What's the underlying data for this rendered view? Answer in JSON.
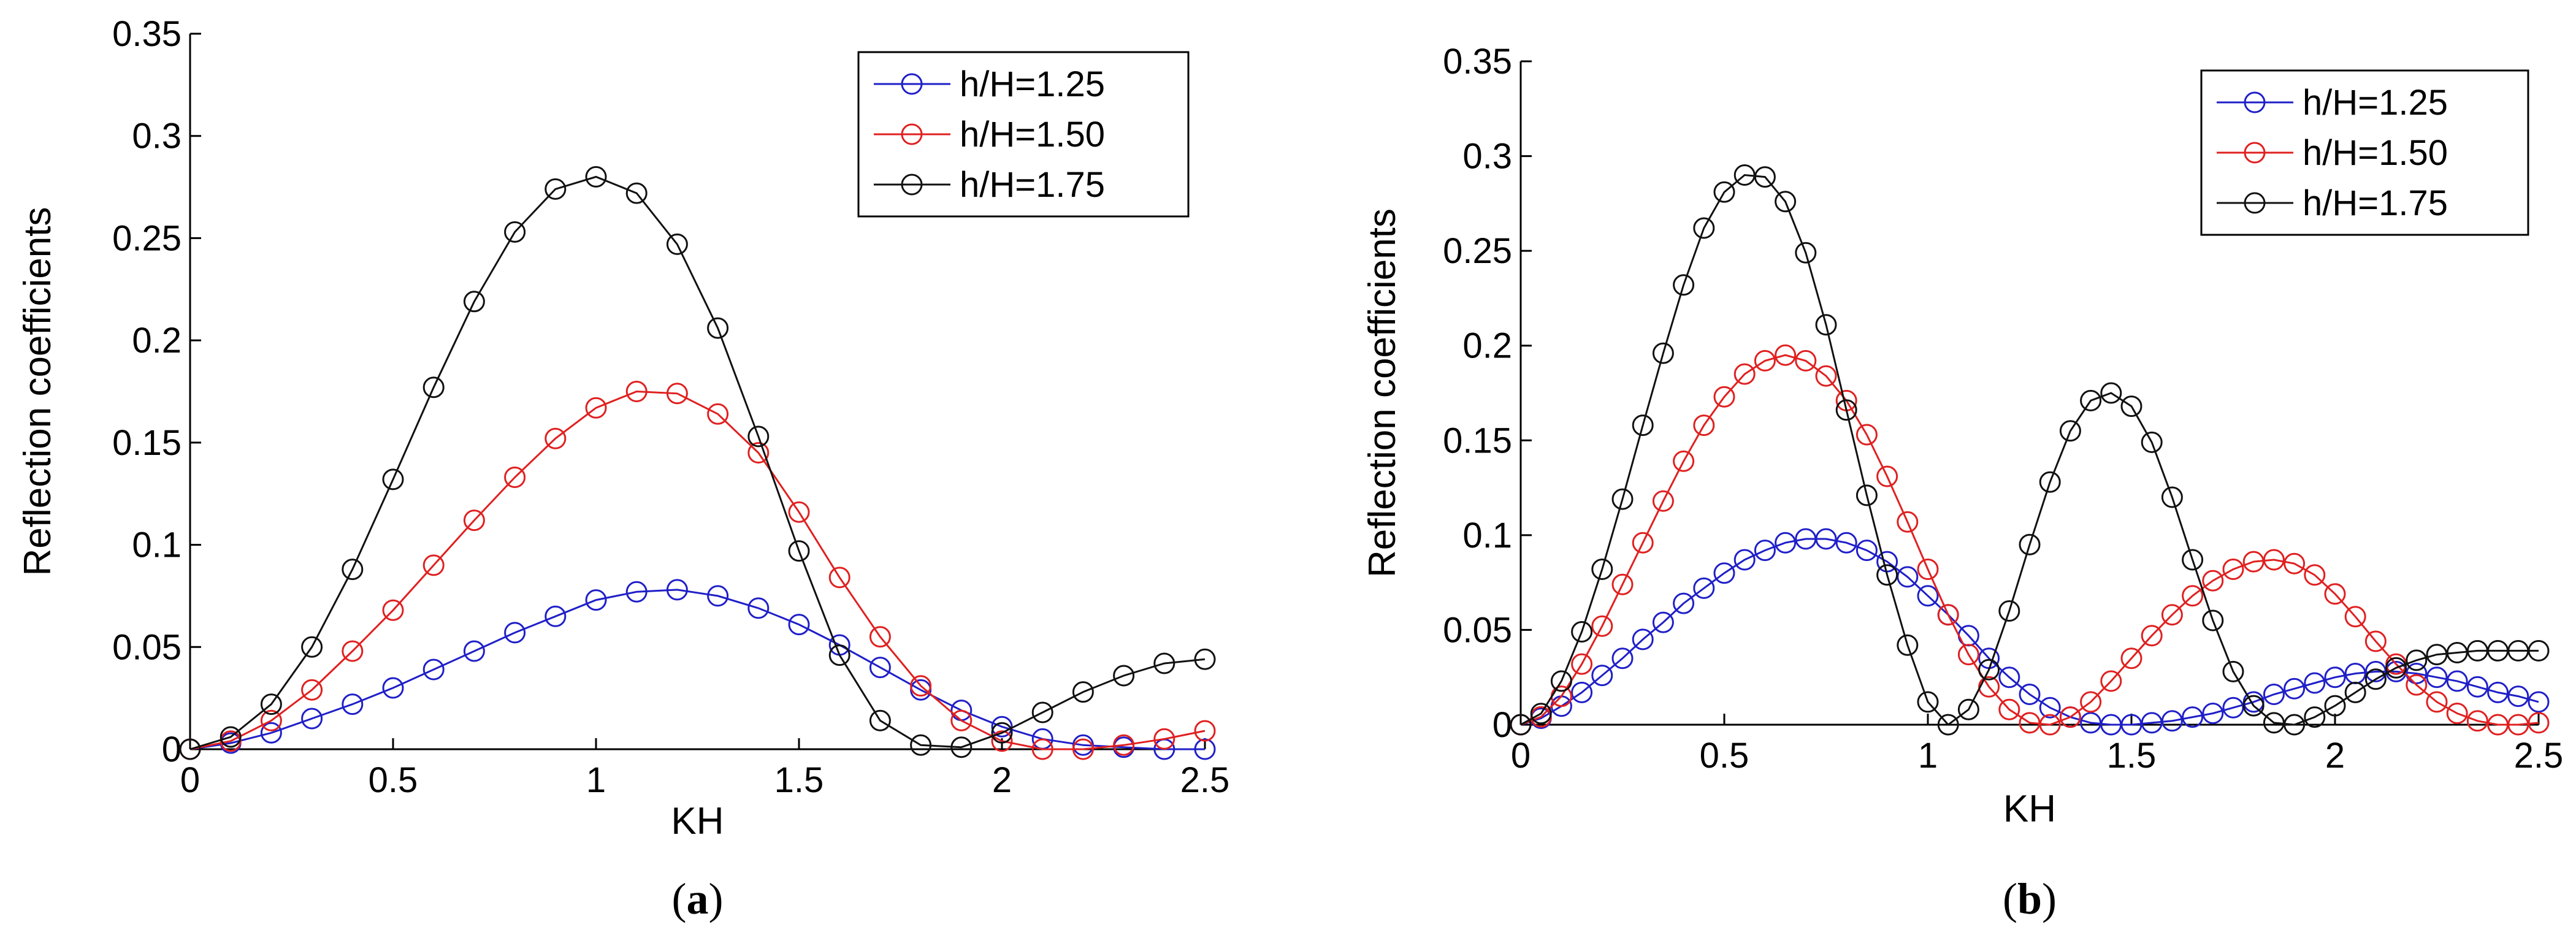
{
  "chart_data": [
    {
      "type": "line",
      "panel_label": {
        "open": "(",
        "letter": "a",
        "close": ")"
      },
      "xlabel": "KH",
      "ylabel": "Reflection coefficients",
      "xlim": [
        0,
        2.5
      ],
      "ylim": [
        0,
        0.35
      ],
      "xticks": [
        "0",
        "0.5",
        "1",
        "1.5",
        "2",
        "2.5"
      ],
      "yticks": [
        "0",
        "0.05",
        "0.1",
        "0.15",
        "0.2",
        "0.25",
        "0.3",
        "0.35"
      ],
      "grid": false,
      "legend": "top-right",
      "marker": "circle",
      "x": [
        0,
        0.1,
        0.2,
        0.3,
        0.4,
        0.5,
        0.6,
        0.7,
        0.8,
        0.9,
        1.0,
        1.1,
        1.2,
        1.3,
        1.4,
        1.5,
        1.6,
        1.7,
        1.8,
        1.9,
        2.0,
        2.1,
        2.2,
        2.3,
        2.4,
        2.5
      ],
      "series": [
        {
          "name": "h/H=1.25",
          "color": "#1f1fc8",
          "values": [
            0,
            0.003,
            0.008,
            0.015,
            0.022,
            0.03,
            0.039,
            0.048,
            0.057,
            0.065,
            0.073,
            0.077,
            0.078,
            0.075,
            0.069,
            0.061,
            0.051,
            0.04,
            0.029,
            0.019,
            0.011,
            0.005,
            0.002,
            0.001,
            0.0,
            0.0
          ]
        },
        {
          "name": "h/H=1.50",
          "color": "#e02020",
          "values": [
            0,
            0.004,
            0.014,
            0.029,
            0.048,
            0.068,
            0.09,
            0.112,
            0.133,
            0.152,
            0.167,
            0.175,
            0.174,
            0.164,
            0.145,
            0.116,
            0.084,
            0.055,
            0.031,
            0.014,
            0.004,
            0.0,
            0.0,
            0.002,
            0.005,
            0.009
          ]
        },
        {
          "name": "h/H=1.75",
          "color": "#111111",
          "values": [
            0,
            0.006,
            0.022,
            0.05,
            0.088,
            0.132,
            0.177,
            0.219,
            0.253,
            0.274,
            0.28,
            0.272,
            0.247,
            0.206,
            0.153,
            0.097,
            0.046,
            0.014,
            0.002,
            0.001,
            0.008,
            0.018,
            0.028,
            0.036,
            0.042,
            0.044
          ]
        }
      ]
    },
    {
      "type": "line",
      "panel_label": {
        "open": "(",
        "letter": "b",
        "close": ")"
      },
      "xlabel": "KH",
      "ylabel": "Reflection coefficients",
      "xlim": [
        0,
        2.5
      ],
      "ylim": [
        0,
        0.35
      ],
      "xticks": [
        "0",
        "0.5",
        "1",
        "1.5",
        "2",
        "2.5"
      ],
      "yticks": [
        "0",
        "0.05",
        "0.1",
        "0.15",
        "0.2",
        "0.25",
        "0.3",
        "0.35"
      ],
      "grid": false,
      "legend": "top-right",
      "marker": "circle",
      "x": [
        0,
        0.05,
        0.1,
        0.15,
        0.2,
        0.25,
        0.3,
        0.35,
        0.4,
        0.45,
        0.5,
        0.55,
        0.6,
        0.65,
        0.7,
        0.75,
        0.8,
        0.85,
        0.9,
        0.95,
        1.0,
        1.05,
        1.1,
        1.15,
        1.2,
        1.25,
        1.3,
        1.35,
        1.4,
        1.45,
        1.5,
        1.55,
        1.6,
        1.65,
        1.7,
        1.75,
        1.8,
        1.85,
        1.9,
        1.95,
        2.0,
        2.05,
        2.1,
        2.15,
        2.2,
        2.25,
        2.3,
        2.35,
        2.4,
        2.45,
        2.5
      ],
      "series": [
        {
          "name": "h/H=1.25",
          "color": "#1f1fc8",
          "values": [
            0,
            0.0034,
            0.0098,
            0.017,
            0.026,
            0.035,
            0.045,
            0.054,
            0.064,
            0.072,
            0.08,
            0.087,
            0.092,
            0.096,
            0.098,
            0.098,
            0.096,
            0.092,
            0.086,
            0.078,
            0.068,
            0.058,
            0.047,
            0.035,
            0.025,
            0.016,
            0.009,
            0.004,
            0.001,
            0.0,
            0.0,
            0.001,
            0.002,
            0.004,
            0.006,
            0.009,
            0.012,
            0.016,
            0.019,
            0.022,
            0.025,
            0.027,
            0.028,
            0.028,
            0.027,
            0.025,
            0.023,
            0.02,
            0.017,
            0.015,
            0.012
          ]
        },
        {
          "name": "h/H=1.50",
          "color": "#e02020",
          "values": [
            0,
            0.0041,
            0.015,
            0.032,
            0.052,
            0.074,
            0.096,
            0.118,
            0.139,
            0.158,
            0.173,
            0.185,
            0.192,
            0.195,
            0.192,
            0.184,
            0.171,
            0.153,
            0.131,
            0.107,
            0.082,
            0.058,
            0.037,
            0.02,
            0.008,
            0.001,
            0.0,
            0.004,
            0.012,
            0.023,
            0.035,
            0.047,
            0.058,
            0.068,
            0.076,
            0.082,
            0.086,
            0.087,
            0.085,
            0.079,
            0.069,
            0.057,
            0.044,
            0.032,
            0.021,
            0.012,
            0.006,
            0.002,
            0.0,
            0.0,
            0.001
          ]
        },
        {
          "name": "h/H=1.75",
          "color": "#111111",
          "values": [
            0,
            0.0059,
            0.023,
            0.049,
            0.082,
            0.119,
            0.158,
            0.196,
            0.232,
            0.262,
            0.281,
            0.29,
            0.289,
            0.276,
            0.249,
            0.211,
            0.166,
            0.121,
            0.079,
            0.042,
            0.012,
            0.0,
            0.008,
            0.029,
            0.06,
            0.095,
            0.128,
            0.155,
            0.171,
            0.175,
            0.168,
            0.149,
            0.12,
            0.087,
            0.055,
            0.028,
            0.01,
            0.001,
            0.0,
            0.004,
            0.01,
            0.017,
            0.024,
            0.03,
            0.034,
            0.037,
            0.038,
            0.039,
            0.039,
            0.039,
            0.039
          ]
        }
      ]
    }
  ]
}
